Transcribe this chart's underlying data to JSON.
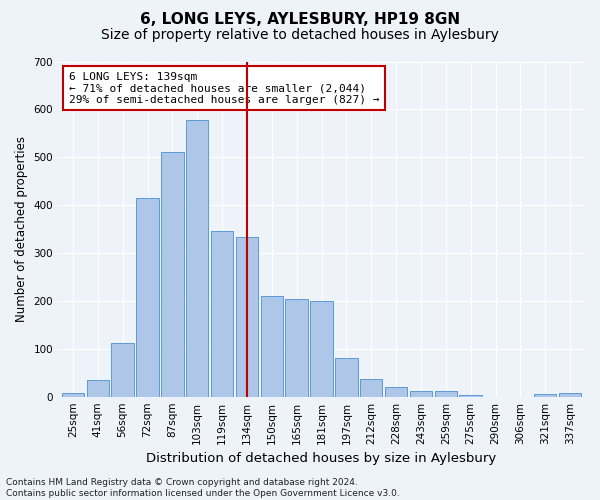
{
  "title": "6, LONG LEYS, AYLESBURY, HP19 8GN",
  "subtitle": "Size of property relative to detached houses in Aylesbury",
  "xlabel": "Distribution of detached houses by size in Aylesbury",
  "ylabel": "Number of detached properties",
  "categories": [
    "25sqm",
    "41sqm",
    "56sqm",
    "72sqm",
    "87sqm",
    "103sqm",
    "119sqm",
    "134sqm",
    "150sqm",
    "165sqm",
    "181sqm",
    "197sqm",
    "212sqm",
    "228sqm",
    "243sqm",
    "259sqm",
    "275sqm",
    "290sqm",
    "306sqm",
    "321sqm",
    "337sqm"
  ],
  "values": [
    8,
    35,
    113,
    415,
    510,
    578,
    345,
    333,
    210,
    205,
    200,
    80,
    37,
    20,
    12,
    12,
    3,
    0,
    0,
    5,
    8
  ],
  "bar_color": "#aec6e8",
  "bar_edge_color": "#5b9bd5",
  "vline_x_index": 7,
  "vline_color": "#c00000",
  "annotation_line1": "6 LONG LEYS: 139sqm",
  "annotation_line2": "← 71% of detached houses are smaller (2,044)",
  "annotation_line3": "29% of semi-detached houses are larger (827) →",
  "annotation_box_color": "#c00000",
  "ylim": [
    0,
    700
  ],
  "yticks": [
    0,
    100,
    200,
    300,
    400,
    500,
    600,
    700
  ],
  "background_color": "#eef2f9",
  "grid_color": "#ffffff",
  "footer": "Contains HM Land Registry data © Crown copyright and database right 2024.\nContains public sector information licensed under the Open Government Licence v3.0.",
  "title_fontsize": 11,
  "subtitle_fontsize": 10,
  "xlabel_fontsize": 9.5,
  "ylabel_fontsize": 8.5,
  "tick_fontsize": 7.5,
  "annotation_fontsize": 8,
  "footer_fontsize": 6.5
}
